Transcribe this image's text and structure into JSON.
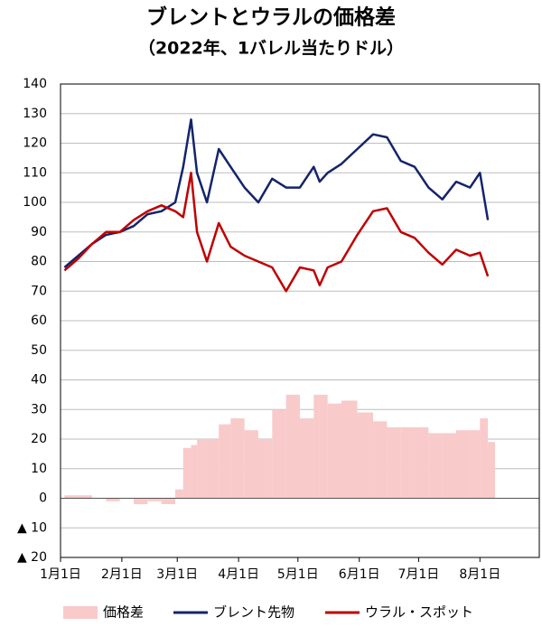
{
  "chart_data": {
    "type": "line",
    "title": "ブレントとウラルの価格差",
    "subtitle": "（2022年、1バレル当たりドル）",
    "x": [
      "2022-01-03",
      "2022-01-10",
      "2022-01-17",
      "2022-01-24",
      "2022-01-31",
      "2022-02-07",
      "2022-02-14",
      "2022-02-21",
      "2022-02-28",
      "2022-03-04",
      "2022-03-08",
      "2022-03-11",
      "2022-03-16",
      "2022-03-22",
      "2022-03-28",
      "2022-04-04",
      "2022-04-11",
      "2022-04-18",
      "2022-04-25",
      "2022-05-02",
      "2022-05-09",
      "2022-05-12",
      "2022-05-16",
      "2022-05-23",
      "2022-05-31",
      "2022-06-08",
      "2022-06-15",
      "2022-06-22",
      "2022-06-29",
      "2022-07-06",
      "2022-07-13",
      "2022-07-20",
      "2022-07-27",
      "2022-08-01",
      "2022-08-05"
    ],
    "series": [
      {
        "name": "価格差",
        "type": "bar",
        "color": "#f9caca",
        "values": [
          1,
          1,
          0,
          -1,
          0,
          -2,
          -1,
          -2,
          3,
          17,
          18,
          20,
          20,
          25,
          27,
          23,
          20,
          30,
          35,
          27,
          35,
          35,
          32,
          33,
          29,
          26,
          24,
          24,
          24,
          22,
          22,
          23,
          23,
          27,
          19
        ]
      },
      {
        "name": "ブレント先物",
        "type": "line",
        "color": "#14246b",
        "values": [
          78,
          82,
          86,
          89,
          90,
          92,
          96,
          97,
          100,
          112,
          128,
          110,
          100,
          118,
          112,
          105,
          100,
          108,
          105,
          105,
          112,
          107,
          110,
          113,
          118,
          123,
          122,
          114,
          112,
          105,
          101,
          107,
          105,
          110,
          94
        ]
      },
      {
        "name": "ウラル・スポット",
        "type": "line",
        "color": "#c00000",
        "values": [
          77,
          81,
          86,
          90,
          90,
          94,
          97,
          99,
          97,
          95,
          110,
          90,
          80,
          93,
          85,
          82,
          80,
          78,
          70,
          78,
          77,
          72,
          78,
          80,
          89,
          97,
          98,
          90,
          88,
          83,
          79,
          84,
          82,
          83,
          75
        ]
      }
    ],
    "xlim": [
      "2022-01-01",
      "2022-08-31"
    ],
    "xticks": [
      {
        "value": "2022-01-01",
        "label": "1月1日"
      },
      {
        "value": "2022-02-01",
        "label": "2月1日"
      },
      {
        "value": "2022-03-01",
        "label": "3月1日"
      },
      {
        "value": "2022-04-01",
        "label": "4月1日"
      },
      {
        "value": "2022-05-01",
        "label": "5月1日"
      },
      {
        "value": "2022-06-01",
        "label": "6月1日"
      },
      {
        "value": "2022-07-01",
        "label": "7月1日"
      },
      {
        "value": "2022-08-01",
        "label": "8月1日"
      }
    ],
    "ylim": [
      -20,
      140
    ],
    "yticks": [
      {
        "value": -20,
        "label": "▲ 20"
      },
      {
        "value": -10,
        "label": "▲ 10"
      },
      0,
      10,
      20,
      30,
      40,
      50,
      60,
      70,
      80,
      90,
      100,
      110,
      120,
      130,
      140
    ],
    "grid": true
  }
}
